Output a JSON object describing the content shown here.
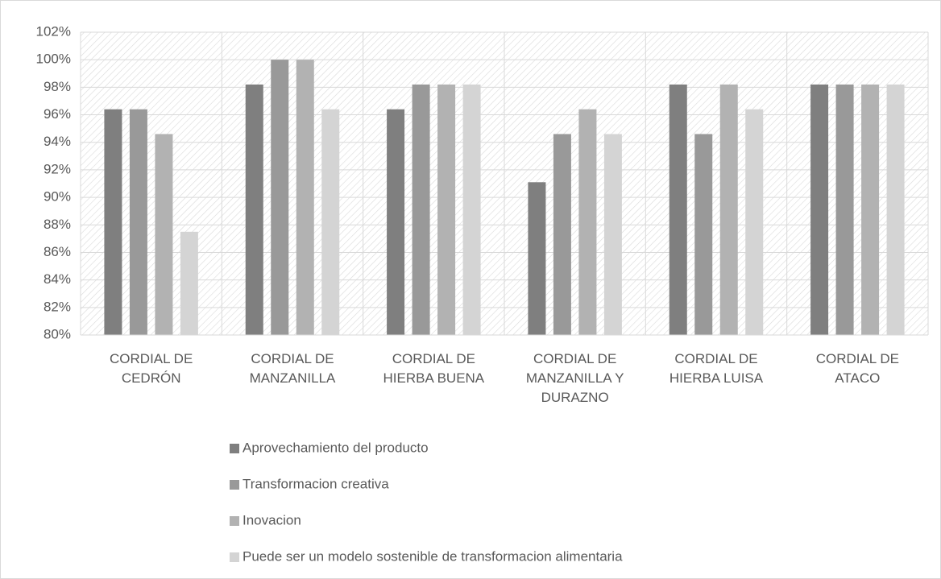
{
  "chart_data": {
    "type": "bar",
    "categories": [
      "CORDIAL DE CEDRÓN",
      "CORDIAL DE MANZANILLA",
      "CORDIAL DE HIERBA BUENA",
      "CORDIAL DE MANZANILLA Y DURAZNO",
      "CORDIAL DE HIERBA LUISA",
      "CORDIAL DE ATACO"
    ],
    "series": [
      {
        "name": "Aprovechamiento del producto",
        "color": "#7f7f7f",
        "values": [
          96.4,
          98.2,
          96.4,
          91.1,
          98.2,
          98.2
        ]
      },
      {
        "name": "Transformacion creativa",
        "color": "#999999",
        "values": [
          96.4,
          100,
          98.2,
          94.6,
          94.6,
          98.2
        ]
      },
      {
        "name": "Inovacion",
        "color": "#b2b2b2",
        "values": [
          94.6,
          100,
          98.2,
          96.4,
          98.2,
          98.2
        ]
      },
      {
        "name": "Puede ser un modelo sostenible de transformacion alimentaria",
        "color": "#d4d4d4",
        "values": [
          87.5,
          96.4,
          98.2,
          94.6,
          96.4,
          98.2
        ]
      }
    ],
    "ylim": [
      80,
      102
    ],
    "yticks": [
      {
        "value": 80,
        "label": "80%"
      },
      {
        "value": 82,
        "label": "82%"
      },
      {
        "value": 84,
        "label": "84%"
      },
      {
        "value": 86,
        "label": "86%"
      },
      {
        "value": 88,
        "label": "88%"
      },
      {
        "value": 90,
        "label": "90%"
      },
      {
        "value": 92,
        "label": "92%"
      },
      {
        "value": 94,
        "label": "94%"
      },
      {
        "value": 96,
        "label": "96%"
      },
      {
        "value": 98,
        "label": "98%"
      },
      {
        "value": 100,
        "label": "100%"
      },
      {
        "value": 102,
        "label": "102%"
      }
    ],
    "grid": true,
    "legend": "bottom"
  }
}
